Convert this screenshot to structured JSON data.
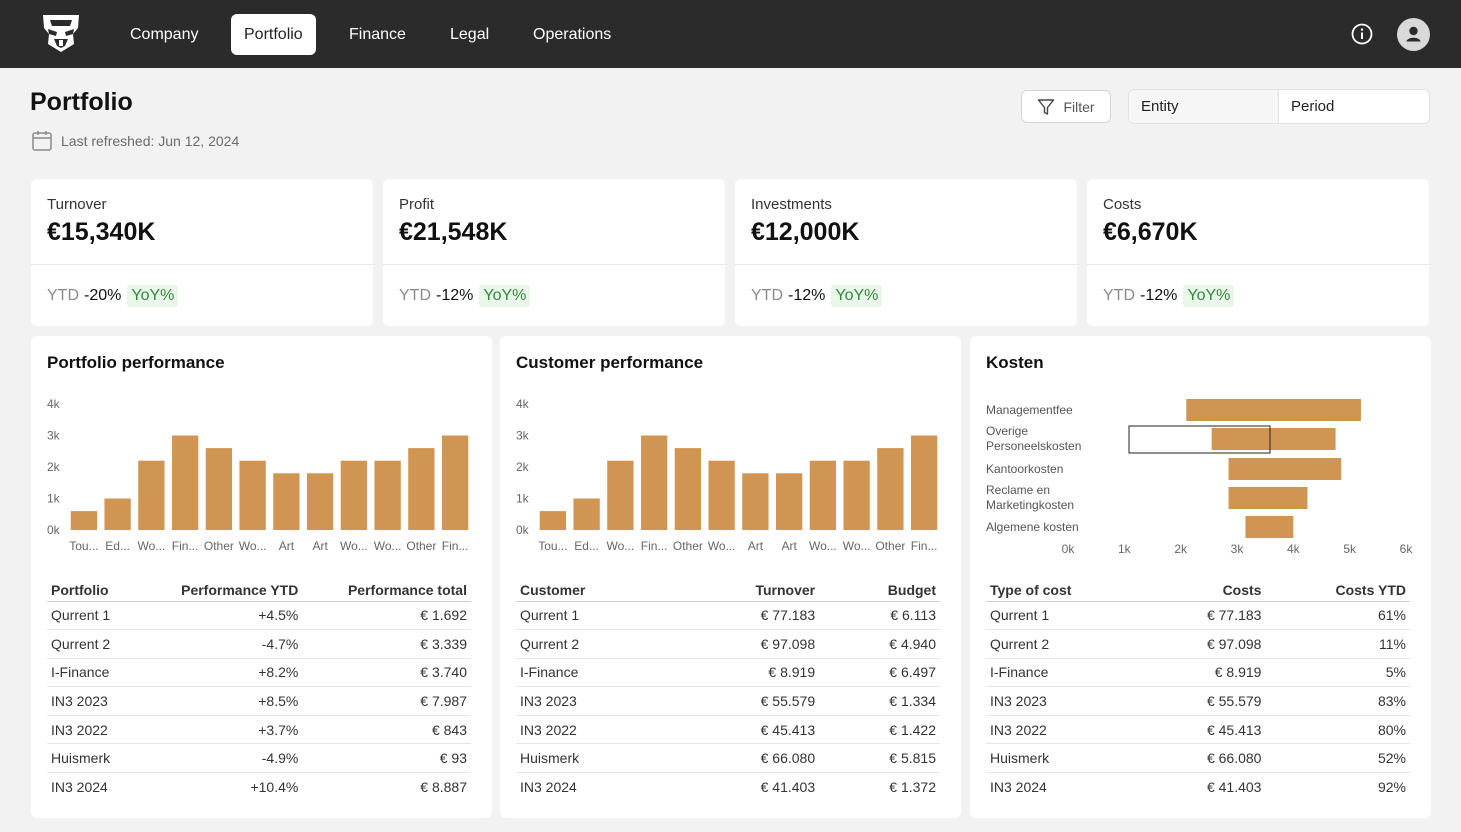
{
  "nav": {
    "items": [
      {
        "label": "Company",
        "active": false
      },
      {
        "label": "Portfolio",
        "active": true
      },
      {
        "label": "Finance",
        "active": false
      },
      {
        "label": "Legal",
        "active": false
      },
      {
        "label": "Operations",
        "active": false
      }
    ],
    "info_icon": "info-icon",
    "avatar_icon": "user-icon"
  },
  "page": {
    "title": "Portfolio",
    "last_refreshed": "Last refreshed: Jun 12, 2024",
    "calendar_icon": "calendar-icon"
  },
  "controls": {
    "filter_label": "Filter",
    "entity_label": "Entity",
    "period_label": "Period"
  },
  "kpis": [
    {
      "label": "Turnover",
      "value": "€15,340K",
      "ytd_label": "YTD",
      "ytd_change": "-20%",
      "yoy_label": "YoY%"
    },
    {
      "label": "Profit",
      "value": "€21,548K",
      "ytd_label": "YTD",
      "ytd_change": "-12%",
      "yoy_label": "YoY%"
    },
    {
      "label": "Investments",
      "value": "€12,000K",
      "ytd_label": "YTD",
      "ytd_change": "-12%",
      "yoy_label": "YoY%"
    },
    {
      "label": "Costs",
      "value": "€6,670K",
      "ytd_label": "YTD",
      "ytd_change": "-12%",
      "yoy_label": "YoY%"
    }
  ],
  "colors": {
    "topbar": "#2b2b2b",
    "bar": "#d09552",
    "positive_bg": "#eaf6ea",
    "positive_text": "#2f8a3a"
  },
  "panels": {
    "portfolio": {
      "title": "Portfolio performance",
      "table": {
        "headers": [
          "Portfolio",
          "Performance YTD",
          "Performance total"
        ],
        "rows": [
          [
            "Qurrent 1",
            "+4.5%",
            "€ 1.692"
          ],
          [
            "Qurrent 2",
            "-4.7%",
            "€ 3.339"
          ],
          [
            "I-Finance",
            "+8.2%",
            "€ 3.740"
          ],
          [
            "IN3 2023",
            "+8.5%",
            "€ 7.987"
          ],
          [
            "IN3 2022",
            "+3.7%",
            "€ 843"
          ],
          [
            "Huismerk",
            "-4.9%",
            "€ 93"
          ],
          [
            "IN3 2024",
            "+10.4%",
            "€ 8.887"
          ]
        ]
      }
    },
    "customer": {
      "title": "Customer performance",
      "table": {
        "headers": [
          "Customer",
          "Turnover",
          "Budget"
        ],
        "rows": [
          [
            "Qurrent 1",
            "€ 77.183",
            "€ 6.113"
          ],
          [
            "Qurrent 2",
            "€ 97.098",
            "€ 4.940"
          ],
          [
            "I-Finance",
            "€ 8.919",
            "€ 6.497"
          ],
          [
            "IN3 2023",
            "€ 55.579",
            "€ 1.334"
          ],
          [
            "IN3 2022",
            "€ 45.413",
            "€ 1.422"
          ],
          [
            "Huismerk",
            "€ 66.080",
            "€ 5.815"
          ],
          [
            "IN3 2024",
            "€ 41.403",
            "€ 1.372"
          ]
        ]
      }
    },
    "kosten": {
      "title": "Kosten",
      "table": {
        "headers": [
          "Type of cost",
          "Costs",
          "Costs YTD"
        ],
        "rows": [
          [
            "Qurrent 1",
            "€ 77.183",
            "61%"
          ],
          [
            "Qurrent 2",
            "€ 97.098",
            "11%"
          ],
          [
            "I-Finance",
            "€ 8.919",
            "5%"
          ],
          [
            "IN3 2023",
            "€ 55.579",
            "83%"
          ],
          [
            "IN3 2022",
            "€ 45.413",
            "80%"
          ],
          [
            "Huismerk",
            "€ 66.080",
            "52%"
          ],
          [
            "IN3 2024",
            "€ 41.403",
            "92%"
          ]
        ]
      }
    }
  },
  "chart_data": [
    {
      "type": "bar",
      "categories": [
        "Tou...",
        "Ed...",
        "Wo...",
        "Fin...",
        "Other",
        "Wo...",
        "Art",
        "Art",
        "Wo...",
        "Wo...",
        "Other",
        "Fin..."
      ],
      "values": [
        600,
        1000,
        2200,
        3000,
        2600,
        2200,
        1800,
        1800,
        2200,
        2200,
        2600,
        3000
      ],
      "yticks": [
        "0k",
        "1k",
        "2k",
        "3k",
        "4k"
      ],
      "ylim": [
        0,
        4000
      ]
    },
    {
      "type": "bar",
      "categories": [
        "Tou...",
        "Ed...",
        "Wo...",
        "Fin...",
        "Other",
        "Wo...",
        "Art",
        "Art",
        "Wo...",
        "Wo...",
        "Other",
        "Fin..."
      ],
      "values": [
        600,
        1000,
        2200,
        3000,
        2600,
        2200,
        1800,
        1800,
        2200,
        2200,
        2600,
        3000
      ],
      "yticks": [
        "0k",
        "1k",
        "2k",
        "3k",
        "4k"
      ],
      "ylim": [
        0,
        4000
      ]
    },
    {
      "type": "bar",
      "orientation": "funnel",
      "categories": [
        [
          "Managementfee"
        ],
        [
          "Overige",
          "Personeelskosten"
        ],
        [
          "Kantoorkosten"
        ],
        [
          "Reclame en",
          "Marketingkosten"
        ],
        [
          "Algemene kosten"
        ]
      ],
      "ranges": [
        [
          2100,
          5200
        ],
        [
          2550,
          4750
        ],
        [
          2850,
          4850
        ],
        [
          2850,
          4250
        ],
        [
          3150,
          4000
        ]
      ],
      "xticks": [
        "0k",
        "1k",
        "2k",
        "3k",
        "4k",
        "5k",
        "6k"
      ],
      "xlim": [
        0,
        6000
      ]
    }
  ]
}
